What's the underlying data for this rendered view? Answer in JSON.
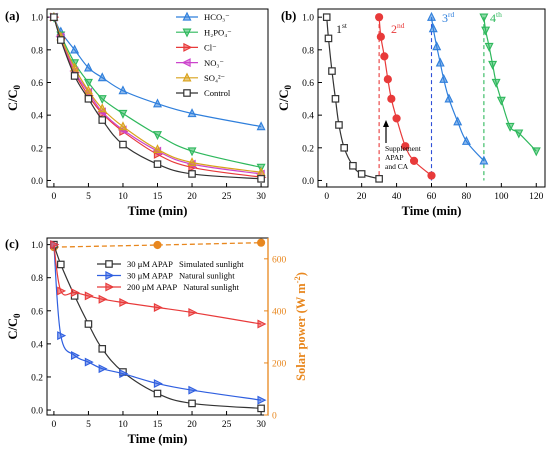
{
  "chart_data": [
    {
      "panel": "a",
      "panel_label": "(a)",
      "type": "line",
      "xlabel": "Time (min)",
      "ylabel": "C/C",
      "ylabel_sub": "0",
      "xlim": [
        -1,
        31
      ],
      "ylim": [
        -0.04,
        1.05
      ],
      "xticks": [
        0,
        5,
        10,
        15,
        20,
        25,
        30
      ],
      "yticks": [
        0.0,
        0.2,
        0.4,
        0.6,
        0.8,
        1.0
      ],
      "x": [
        0,
        1,
        3,
        5,
        7,
        10,
        15,
        20,
        30
      ],
      "legend_position": "top-right",
      "series": [
        {
          "name": "HCO₃⁻",
          "color": "#2f7fdc",
          "marker": "triangle-up",
          "values": [
            1.0,
            0.91,
            0.8,
            0.69,
            0.63,
            0.55,
            0.47,
            0.41,
            0.33
          ]
        },
        {
          "name": "H₂PO₄⁻",
          "color": "#2eb85c",
          "marker": "triangle-down",
          "values": [
            1.0,
            0.89,
            0.72,
            0.6,
            0.5,
            0.41,
            0.28,
            0.18,
            0.08
          ]
        },
        {
          "name": "Cl⁻",
          "color": "#e83a3a",
          "marker": "triangle-right",
          "values": [
            1.0,
            0.87,
            0.66,
            0.52,
            0.41,
            0.3,
            0.16,
            0.08,
            0.02
          ]
        },
        {
          "name": "NO₃⁻",
          "color": "#cc44cc",
          "marker": "triangle-left",
          "values": [
            1.0,
            0.88,
            0.67,
            0.54,
            0.42,
            0.31,
            0.18,
            0.1,
            0.04
          ]
        },
        {
          "name": "SO₄²⁻",
          "color": "#d9a21b",
          "marker": "triangle-up",
          "values": [
            1.0,
            0.88,
            0.69,
            0.55,
            0.44,
            0.33,
            0.19,
            0.11,
            0.05
          ]
        },
        {
          "name": "Control",
          "color": "#333333",
          "marker": "square",
          "values": [
            1.0,
            0.86,
            0.64,
            0.5,
            0.37,
            0.22,
            0.1,
            0.04,
            0.01
          ]
        }
      ]
    },
    {
      "panel": "b",
      "panel_label": "(b)",
      "type": "line",
      "xlabel": "Time (min)",
      "ylabel": "C/C",
      "ylabel_sub": "0",
      "xlim": [
        -5,
        125
      ],
      "ylim": [
        -0.04,
        1.05
      ],
      "xticks": [
        0,
        20,
        40,
        60,
        80,
        100,
        120
      ],
      "yticks": [
        0.0,
        0.2,
        0.4,
        0.6,
        0.8,
        1.0
      ],
      "series": [
        {
          "name": "1st",
          "color": "#333333",
          "marker": "square",
          "x": [
            0,
            1,
            3,
            5,
            7,
            10,
            15,
            20,
            30
          ],
          "values": [
            1.0,
            0.87,
            0.67,
            0.5,
            0.34,
            0.2,
            0.09,
            0.04,
            0.01
          ]
        },
        {
          "name": "2nd",
          "color": "#e83a3a",
          "marker": "circle",
          "x": [
            30,
            31,
            33,
            35,
            37,
            40,
            45,
            50,
            60
          ],
          "values": [
            1.0,
            0.88,
            0.76,
            0.62,
            0.5,
            0.38,
            0.21,
            0.12,
            0.03
          ]
        },
        {
          "name": "3rd",
          "color": "#2f7fdc",
          "marker": "triangle-up",
          "x": [
            60,
            61,
            63,
            65,
            67,
            70,
            75,
            80,
            90
          ],
          "values": [
            1.0,
            0.93,
            0.82,
            0.72,
            0.62,
            0.5,
            0.36,
            0.24,
            0.12
          ]
        },
        {
          "name": "4th",
          "color": "#2eb85c",
          "marker": "triangle-down",
          "x": [
            90,
            91,
            93,
            95,
            97,
            100,
            105,
            110,
            120
          ],
          "values": [
            1.0,
            0.92,
            0.82,
            0.71,
            0.6,
            0.49,
            0.33,
            0.29,
            0.18
          ]
        }
      ],
      "cycle_labels": [
        {
          "base": "1",
          "sup": "st",
          "color": "#222222"
        },
        {
          "base": "2",
          "sup": "nd",
          "color": "#e83a3a"
        },
        {
          "base": "3",
          "sup": "rd",
          "color": "#2f7fdc"
        },
        {
          "base": "4",
          "sup": "th",
          "color": "#2eb85c"
        }
      ],
      "dashed_lines": [
        {
          "x": 30,
          "color": "#e83a3a"
        },
        {
          "x": 60,
          "color": "#2f4fd8"
        },
        {
          "x": 90,
          "color": "#2eb85c"
        }
      ],
      "annotation": [
        "Supplement",
        "APAP",
        "and CA"
      ]
    },
    {
      "panel": "c",
      "panel_label": "(c)",
      "type": "line",
      "xlabel": "Time (min)",
      "ylabel": "C/C",
      "ylabel_sub": "0",
      "ylabel_right": "Solar power (W m",
      "ylabel_right_sup": "-2",
      "ylabel_right_end": ")",
      "right_axis_color": "#e8871e",
      "xlim": [
        -1,
        31
      ],
      "ylim": [
        -0.03,
        1.04
      ],
      "ylim_right": [
        0,
        680
      ],
      "xticks": [
        0,
        5,
        10,
        15,
        20,
        25,
        30
      ],
      "yticks": [
        0.0,
        0.2,
        0.4,
        0.6,
        0.8,
        1.0
      ],
      "yticks_right": [
        0,
        200,
        400,
        600
      ],
      "x": [
        0,
        1,
        3,
        5,
        7,
        10,
        15,
        20,
        30
      ],
      "legend_position": "top-center",
      "series": [
        {
          "name": "30 μM APAP   Simulated sunlight",
          "color": "#333333",
          "marker": "square",
          "values": [
            1.0,
            0.88,
            0.69,
            0.52,
            0.37,
            0.23,
            0.1,
            0.04,
            0.01
          ]
        },
        {
          "name": "30 μM APAP   Natural sunlight",
          "color": "#2f5fe0",
          "marker": "triangle-right",
          "values": [
            1.0,
            0.45,
            0.33,
            0.29,
            0.25,
            0.22,
            0.16,
            0.12,
            0.06
          ]
        },
        {
          "name": "200 μM APAP   Natural sunlight",
          "color": "#e83a3a",
          "marker": "triangle-right",
          "values": [
            1.0,
            0.72,
            0.71,
            0.69,
            0.67,
            0.65,
            0.62,
            0.59,
            0.52
          ]
        }
      ],
      "solar_power": {
        "color": "#e8871e",
        "x": [
          0,
          15,
          30
        ],
        "values": [
          645,
          653,
          662
        ]
      }
    }
  ]
}
